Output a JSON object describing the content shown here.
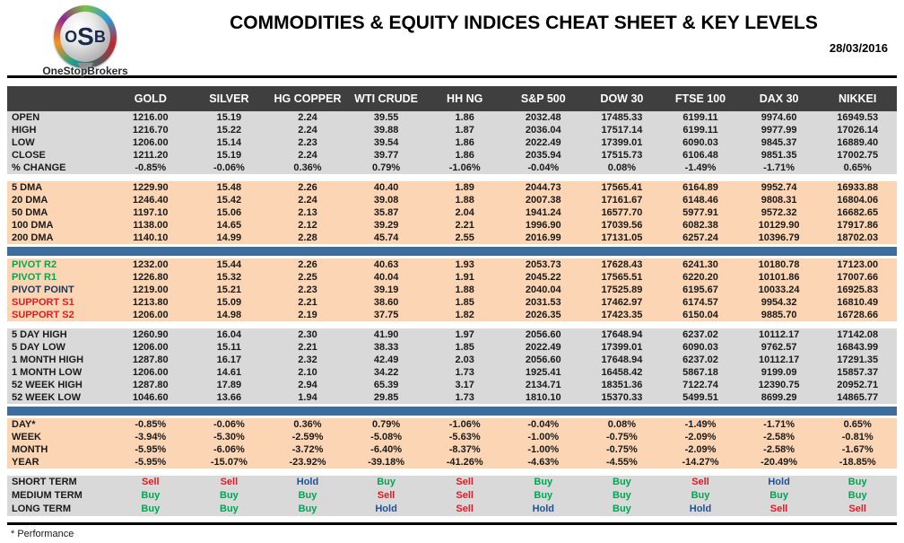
{
  "header": {
    "logo_letter_o": "O",
    "logo_letter_s": "S",
    "logo_letter_b": "B",
    "logo_text": "OneStopBrokers",
    "title": "COMMODITIES & EQUITY INDICES CHEAT SHEET & KEY LEVELS",
    "date": "28/03/2016"
  },
  "colors": {
    "header_bg": "#3f3f3f",
    "gray_row": "#d9d9d9",
    "peach_row": "#fcd5b4",
    "divider_blue": "#3c6d9e",
    "buy_green": "#00a651",
    "sell_red": "#e31b23",
    "hold_blue": "#1f5296",
    "pivot_navy": "#17375d"
  },
  "table": {
    "columns": [
      "GOLD",
      "SILVER",
      "HG COPPER",
      "WTI CRUDE",
      "HH NG",
      "S&P 500",
      "DOW 30",
      "FTSE 100",
      "DAX 30",
      "NIKKEI"
    ],
    "sections": [
      {
        "id": "ohlc",
        "bg": "gray",
        "after": "gap",
        "rows": [
          {
            "label": "OPEN",
            "values": [
              "1216.00",
              "15.19",
              "2.24",
              "39.55",
              "1.86",
              "2032.48",
              "17485.33",
              "6199.11",
              "9974.60",
              "16949.53"
            ]
          },
          {
            "label": "HIGH",
            "values": [
              "1216.70",
              "15.22",
              "2.24",
              "39.88",
              "1.87",
              "2036.04",
              "17517.14",
              "6199.11",
              "9977.99",
              "17026.14"
            ]
          },
          {
            "label": "LOW",
            "values": [
              "1206.00",
              "15.14",
              "2.23",
              "39.54",
              "1.86",
              "2022.49",
              "17399.01",
              "6090.03",
              "9845.37",
              "16889.40"
            ]
          },
          {
            "label": "CLOSE",
            "values": [
              "1211.20",
              "15.19",
              "2.24",
              "39.77",
              "1.86",
              "2035.94",
              "17515.73",
              "6106.48",
              "9851.35",
              "17002.75"
            ]
          },
          {
            "label": "% CHANGE",
            "values": [
              "-0.85%",
              "-0.06%",
              "0.36%",
              "0.79%",
              "-1.06%",
              "-0.04%",
              "0.08%",
              "-1.49%",
              "-1.71%",
              "0.65%"
            ]
          }
        ]
      },
      {
        "id": "dma",
        "bg": "peach",
        "after": "blue",
        "rows": [
          {
            "label": "5 DMA",
            "values": [
              "1229.90",
              "15.48",
              "2.26",
              "40.40",
              "1.89",
              "2044.73",
              "17565.41",
              "6164.89",
              "9952.74",
              "16933.88"
            ]
          },
          {
            "label": "20 DMA",
            "values": [
              "1246.40",
              "15.42",
              "2.24",
              "39.08",
              "1.88",
              "2007.38",
              "17161.67",
              "6148.46",
              "9808.31",
              "16804.06"
            ]
          },
          {
            "label": "50 DMA",
            "values": [
              "1197.10",
              "15.06",
              "2.13",
              "35.87",
              "2.04",
              "1941.24",
              "16577.70",
              "5977.91",
              "9572.32",
              "16682.65"
            ]
          },
          {
            "label": "100 DMA",
            "values": [
              "1138.00",
              "14.65",
              "2.12",
              "39.29",
              "2.21",
              "1996.90",
              "17039.56",
              "6082.38",
              "10129.90",
              "17917.86"
            ]
          },
          {
            "label": "200 DMA",
            "values": [
              "1140.10",
              "14.99",
              "2.28",
              "45.74",
              "2.55",
              "2016.99",
              "17131.05",
              "6257.24",
              "10396.79",
              "18702.03"
            ]
          }
        ]
      },
      {
        "id": "pivots",
        "bg": "peach",
        "after": "gap",
        "rows": [
          {
            "label": "PIVOT R2",
            "lc": "green",
            "values": [
              "1232.00",
              "15.44",
              "2.26",
              "40.63",
              "1.93",
              "2053.73",
              "17628.43",
              "6241.30",
              "10180.78",
              "17123.00"
            ]
          },
          {
            "label": "PIVOT R1",
            "lc": "green",
            "values": [
              "1226.80",
              "15.32",
              "2.25",
              "40.04",
              "1.91",
              "2045.22",
              "17565.51",
              "6220.20",
              "10101.86",
              "17007.66"
            ]
          },
          {
            "label": "PIVOT POINT",
            "lc": "navy",
            "values": [
              "1219.00",
              "15.21",
              "2.23",
              "39.19",
              "1.88",
              "2040.04",
              "17525.89",
              "6195.67",
              "10033.24",
              "16925.83"
            ]
          },
          {
            "label": "SUPPORT S1",
            "lc": "red",
            "values": [
              "1213.80",
              "15.09",
              "2.21",
              "38.60",
              "1.85",
              "2031.53",
              "17462.97",
              "6174.57",
              "9954.32",
              "16810.49"
            ]
          },
          {
            "label": "SUPPORT S2",
            "lc": "red",
            "values": [
              "1206.00",
              "14.98",
              "2.19",
              "37.75",
              "1.82",
              "2026.35",
              "17423.35",
              "6150.04",
              "9885.70",
              "16728.66"
            ]
          }
        ]
      },
      {
        "id": "ranges",
        "bg": "gray",
        "after": "blue",
        "rows": [
          {
            "label": "5 DAY HIGH",
            "values": [
              "1260.90",
              "16.04",
              "2.30",
              "41.90",
              "1.97",
              "2056.60",
              "17648.94",
              "6237.02",
              "10112.17",
              "17142.08"
            ]
          },
          {
            "label": "5 DAY LOW",
            "values": [
              "1206.00",
              "15.11",
              "2.21",
              "38.33",
              "1.85",
              "2022.49",
              "17399.01",
              "6090.03",
              "9762.57",
              "16843.99"
            ]
          },
          {
            "label": "1 MONTH HIGH",
            "values": [
              "1287.80",
              "16.17",
              "2.32",
              "42.49",
              "2.03",
              "2056.60",
              "17648.94",
              "6237.02",
              "10112.17",
              "17291.35"
            ]
          },
          {
            "label": "1 MONTH LOW",
            "values": [
              "1206.00",
              "14.61",
              "2.10",
              "34.22",
              "1.73",
              "1925.41",
              "16458.42",
              "5867.18",
              "9199.09",
              "15857.37"
            ]
          },
          {
            "label": "52 WEEK HIGH",
            "values": [
              "1287.80",
              "17.89",
              "2.94",
              "65.39",
              "3.17",
              "2134.71",
              "18351.36",
              "7122.74",
              "12390.75",
              "20952.71"
            ]
          },
          {
            "label": "52 WEEK LOW",
            "values": [
              "1046.60",
              "13.66",
              "1.94",
              "29.85",
              "1.73",
              "1810.10",
              "15370.33",
              "5499.51",
              "8699.29",
              "14865.77"
            ]
          }
        ]
      },
      {
        "id": "performance",
        "bg": "peach",
        "after": "gap",
        "rows": [
          {
            "label": "DAY*",
            "values": [
              "-0.85%",
              "-0.06%",
              "0.36%",
              "0.79%",
              "-1.06%",
              "-0.04%",
              "0.08%",
              "-1.49%",
              "-1.71%",
              "0.65%"
            ]
          },
          {
            "label": "WEEK",
            "values": [
              "-3.94%",
              "-5.30%",
              "-2.59%",
              "-5.08%",
              "-5.63%",
              "-1.00%",
              "-0.75%",
              "-2.09%",
              "-2.58%",
              "-0.81%"
            ]
          },
          {
            "label": "MONTH",
            "values": [
              "-5.95%",
              "-6.06%",
              "-3.72%",
              "-6.40%",
              "-8.37%",
              "-1.00%",
              "-0.75%",
              "-2.09%",
              "-2.58%",
              "-1.67%"
            ]
          },
          {
            "label": "YEAR",
            "values": [
              "-5.95%",
              "-15.07%",
              "-23.92%",
              "-39.18%",
              "-41.26%",
              "-4.63%",
              "-4.55%",
              "-14.27%",
              "-20.49%",
              "-18.85%"
            ]
          }
        ]
      },
      {
        "id": "signals",
        "bg": "gray",
        "signal": true,
        "after": null,
        "rows": [
          {
            "label": "SHORT TERM",
            "values": [
              "Sell",
              "Sell",
              "Hold",
              "Buy",
              "Sell",
              "Buy",
              "Buy",
              "Sell",
              "Hold",
              "Buy"
            ]
          },
          {
            "label": "MEDIUM TERM",
            "values": [
              "Buy",
              "Buy",
              "Buy",
              "Sell",
              "Sell",
              "Buy",
              "Buy",
              "Buy",
              "Buy",
              "Buy"
            ]
          },
          {
            "label": "LONG TERM",
            "values": [
              "Buy",
              "Buy",
              "Buy",
              "Hold",
              "Sell",
              "Hold",
              "Buy",
              "Hold",
              "Sell",
              "Sell"
            ]
          }
        ]
      }
    ]
  },
  "footer": {
    "note": "* Performance"
  }
}
